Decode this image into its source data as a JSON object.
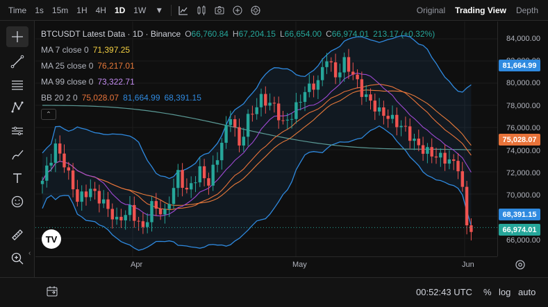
{
  "toolbar": {
    "timeframes": [
      {
        "label": "Time",
        "active": false
      },
      {
        "label": "1s",
        "active": false
      },
      {
        "label": "15m",
        "active": false
      },
      {
        "label": "1H",
        "active": false
      },
      {
        "label": "4H",
        "active": false
      },
      {
        "label": "1D",
        "active": true
      },
      {
        "label": "1W",
        "active": false
      }
    ],
    "views": [
      {
        "label": "Original",
        "active": false
      },
      {
        "label": "Trading View",
        "active": true
      },
      {
        "label": "Depth",
        "active": false
      }
    ]
  },
  "legend": {
    "title": "BTCUSDT Latest Data · 1D · Binance",
    "o_label": "O",
    "o_value": "66,760.84",
    "h_label": "H",
    "h_value": "67,204.15",
    "l_label": "L",
    "l_value": "66,654.00",
    "c_label": "C",
    "c_value": "66,974.01",
    "change": "213.17 (+0.32%)",
    "ma7_label": "MA 7 close 0",
    "ma7_value": "71,397.25",
    "ma25_label": "MA 25 close 0",
    "ma25_value": "76,217.01",
    "ma99_label": "MA 99 close 0",
    "ma99_value": "73,322.71",
    "bb_label": "BB 20 2 0",
    "bb_basis": "75,028.07",
    "bb_upper": "81,664.99",
    "bb_lower": "68,391.15"
  },
  "colors": {
    "up": "#26a69a",
    "down": "#ef5350",
    "ma7": "#f5d142",
    "ma25": "#e87a3a",
    "ma99": "#9c4fc4",
    "bb_basis": "#e8733a",
    "bb_band": "#2f8ae0",
    "ma99_line": "#5b9a96"
  },
  "price_axis": {
    "ticks": [
      "84,000.00",
      "82,000.00",
      "80,000.00",
      "78,000.00",
      "76,000.00",
      "74,000.00",
      "72,000.00",
      "70,000.00",
      "68,000.00",
      "66,000.00"
    ],
    "tags": {
      "bb_upper": "81,664.99",
      "bb_basis": "75,028.07",
      "bb_lower": "68,391.15",
      "last": "66,974.01"
    }
  },
  "time_axis": {
    "labels": [
      "Apr",
      "May",
      "Jun"
    ]
  },
  "bottom": {
    "clock": "00:52:43 UTC",
    "percent": "%",
    "log": "log",
    "auto": "auto"
  },
  "logo_text": "TV"
}
